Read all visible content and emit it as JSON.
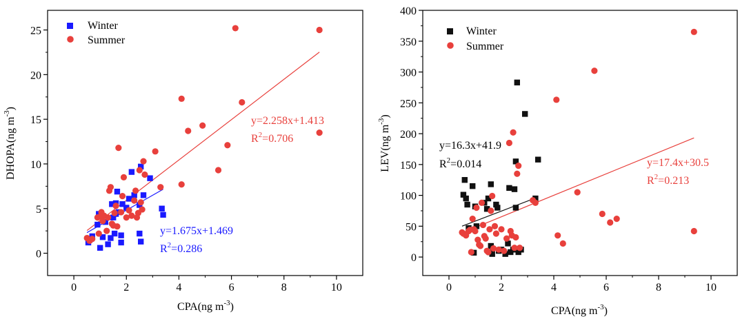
{
  "chart_data": [
    {
      "type": "scatter",
      "xlabel": "CPA(ng m",
      "xlabel_sup": "-3",
      "xlabel_end": ")",
      "ylabel": "DHOPA(ng m",
      "ylabel_sup": "-3",
      "ylabel_end": ")",
      "xlim": [
        -1,
        11
      ],
      "ylim": [
        -2.5,
        27.2
      ],
      "xticks": [
        0,
        2,
        4,
        6,
        8,
        10
      ],
      "yticks": [
        0,
        5,
        10,
        15,
        20,
        25
      ],
      "legend_position": "top-left",
      "series": [
        {
          "name": "Winter",
          "color": "#1a1aff",
          "marker": "square",
          "points": [
            [
              0.55,
              1.2
            ],
            [
              0.6,
              1.5
            ],
            [
              0.7,
              1.9
            ],
            [
              0.9,
              3.2
            ],
            [
              0.95,
              4.4
            ],
            [
              1.0,
              0.6
            ],
            [
              1.1,
              1.8
            ],
            [
              1.2,
              3.5
            ],
            [
              1.3,
              1.0
            ],
            [
              1.4,
              1.7
            ],
            [
              1.45,
              5.5
            ],
            [
              1.5,
              4.0
            ],
            [
              1.55,
              2.2
            ],
            [
              1.6,
              4.4
            ],
            [
              1.6,
              5.6
            ],
            [
              1.65,
              6.9
            ],
            [
              1.7,
              4.6
            ],
            [
              1.8,
              1.2
            ],
            [
              1.8,
              2.0
            ],
            [
              1.85,
              5.5
            ],
            [
              2.0,
              5.1
            ],
            [
              2.1,
              6.1
            ],
            [
              2.2,
              9.1
            ],
            [
              2.3,
              6.5
            ],
            [
              2.5,
              2.2
            ],
            [
              2.55,
              1.3
            ],
            [
              2.5,
              5.4
            ],
            [
              2.55,
              9.7
            ],
            [
              2.65,
              6.5
            ],
            [
              2.9,
              8.4
            ],
            [
              3.35,
              5.0
            ],
            [
              3.4,
              4.3
            ]
          ],
          "fit_label": "y=1.675x+1.469",
          "r2_label": "0.286",
          "fit": {
            "slope": 1.675,
            "intercept": 1.469,
            "x_range": [
              0.5,
              3.4
            ]
          }
        },
        {
          "name": "Summer",
          "color": "#e8403c",
          "marker": "circle",
          "points": [
            [
              0.5,
              1.7
            ],
            [
              0.6,
              1.4
            ],
            [
              0.7,
              1.6
            ],
            [
              0.9,
              4.0
            ],
            [
              0.95,
              2.2
            ],
            [
              1.0,
              4.1
            ],
            [
              1.05,
              4.6
            ],
            [
              1.1,
              3.6
            ],
            [
              1.15,
              4.2
            ],
            [
              1.25,
              2.5
            ],
            [
              1.3,
              4.0
            ],
            [
              1.35,
              7.0
            ],
            [
              1.4,
              7.4
            ],
            [
              1.45,
              3.3
            ],
            [
              1.5,
              3.1
            ],
            [
              1.55,
              4.5
            ],
            [
              1.6,
              5.3
            ],
            [
              1.65,
              3.0
            ],
            [
              1.7,
              11.8
            ],
            [
              1.8,
              4.6
            ],
            [
              1.85,
              6.4
            ],
            [
              1.9,
              8.5
            ],
            [
              2.0,
              4.0
            ],
            [
              2.1,
              4.8
            ],
            [
              2.2,
              4.2
            ],
            [
              2.3,
              5.9
            ],
            [
              2.35,
              7.0
            ],
            [
              2.4,
              4.0
            ],
            [
              2.45,
              4.5
            ],
            [
              2.5,
              9.3
            ],
            [
              2.55,
              5.7
            ],
            [
              2.6,
              4.9
            ],
            [
              2.65,
              10.3
            ],
            [
              2.7,
              8.8
            ],
            [
              3.1,
              11.4
            ],
            [
              3.3,
              7.4
            ],
            [
              4.1,
              17.3
            ],
            [
              4.1,
              7.7
            ],
            [
              4.35,
              13.7
            ],
            [
              4.9,
              14.3
            ],
            [
              5.5,
              9.3
            ],
            [
              5.85,
              12.1
            ],
            [
              6.15,
              25.2
            ],
            [
              6.4,
              16.9
            ],
            [
              9.35,
              25.0
            ],
            [
              9.35,
              13.5
            ]
          ],
          "fit_label": "y=2.258x+1.413",
          "r2_label": "0.706",
          "fit": {
            "slope": 2.258,
            "intercept": 1.413,
            "x_range": [
              0.5,
              9.35
            ]
          }
        }
      ]
    },
    {
      "type": "scatter",
      "xlabel": "CPA(ng m",
      "xlabel_sup": "-3",
      "xlabel_end": ")",
      "ylabel": "LEV(ng m",
      "ylabel_sup": "-3",
      "ylabel_end": ")",
      "xlim": [
        -1,
        11
      ],
      "ylim": [
        -30,
        400
      ],
      "xticks": [
        0,
        2,
        4,
        6,
        8,
        10
      ],
      "yticks": [
        0,
        50,
        100,
        150,
        200,
        250,
        300,
        350,
        400
      ],
      "legend_position": "top-left",
      "series": [
        {
          "name": "Winter",
          "color": "#111111",
          "marker": "square",
          "points": [
            [
              0.55,
              101
            ],
            [
              0.6,
              125
            ],
            [
              0.65,
              95
            ],
            [
              0.7,
              85
            ],
            [
              0.75,
              47
            ],
            [
              0.9,
              115
            ],
            [
              0.95,
              7
            ],
            [
              1.0,
              82
            ],
            [
              1.05,
              50
            ],
            [
              1.35,
              88
            ],
            [
              1.45,
              78
            ],
            [
              1.5,
              95
            ],
            [
              1.55,
              8
            ],
            [
              1.6,
              18
            ],
            [
              1.6,
              118
            ],
            [
              1.65,
              5
            ],
            [
              1.8,
              85
            ],
            [
              1.85,
              80
            ],
            [
              1.9,
              10
            ],
            [
              2.0,
              12
            ],
            [
              2.15,
              5
            ],
            [
              2.25,
              22
            ],
            [
              2.3,
              112
            ],
            [
              2.35,
              8
            ],
            [
              2.45,
              12
            ],
            [
              2.5,
              110
            ],
            [
              2.55,
              80
            ],
            [
              2.55,
              155
            ],
            [
              2.6,
              283
            ],
            [
              2.65,
              8
            ],
            [
              2.75,
              12
            ],
            [
              2.9,
              232
            ],
            [
              3.3,
              95
            ],
            [
              3.4,
              158
            ]
          ],
          "fit_label": "y=16.3x+41.9",
          "r2_label": "0.014",
          "fit": {
            "slope": 16.3,
            "intercept": 41.9,
            "x_range": [
              0.5,
              3.4
            ]
          }
        },
        {
          "name": "Summer",
          "color": "#e8403c",
          "marker": "circle",
          "points": [
            [
              0.5,
              40
            ],
            [
              0.55,
              38
            ],
            [
              0.65,
              35
            ],
            [
              0.75,
              42
            ],
            [
              0.8,
              44
            ],
            [
              0.85,
              8
            ],
            [
              0.9,
              62
            ],
            [
              0.95,
              45
            ],
            [
              1.0,
              42
            ],
            [
              1.05,
              80
            ],
            [
              1.1,
              28
            ],
            [
              1.15,
              20
            ],
            [
              1.2,
              18
            ],
            [
              1.25,
              88
            ],
            [
              1.3,
              52
            ],
            [
              1.35,
              34
            ],
            [
              1.4,
              30
            ],
            [
              1.45,
              10
            ],
            [
              1.5,
              8
            ],
            [
              1.55,
              45
            ],
            [
              1.6,
              75
            ],
            [
              1.65,
              99
            ],
            [
              1.7,
              14
            ],
            [
              1.75,
              50
            ],
            [
              1.8,
              38
            ],
            [
              1.9,
              12
            ],
            [
              2.0,
              45
            ],
            [
              2.1,
              10
            ],
            [
              2.2,
              30
            ],
            [
              2.3,
              185
            ],
            [
              2.35,
              42
            ],
            [
              2.4,
              35
            ],
            [
              2.45,
              202
            ],
            [
              2.5,
              15
            ],
            [
              2.55,
              32
            ],
            [
              2.6,
              135
            ],
            [
              2.65,
              148
            ],
            [
              2.7,
              15
            ],
            [
              3.2,
              92
            ],
            [
              3.3,
              88
            ],
            [
              4.1,
              255
            ],
            [
              4.15,
              35
            ],
            [
              4.35,
              22
            ],
            [
              4.9,
              105
            ],
            [
              5.55,
              302
            ],
            [
              5.85,
              70
            ],
            [
              6.15,
              56
            ],
            [
              6.4,
              62
            ],
            [
              9.35,
              365
            ],
            [
              9.35,
              42
            ]
          ],
          "fit_label": "y=17.4x+30.5",
          "r2_label": "0.213",
          "fit": {
            "slope": 17.4,
            "intercept": 30.5,
            "x_range": [
              0.5,
              9.35
            ]
          }
        }
      ]
    }
  ]
}
